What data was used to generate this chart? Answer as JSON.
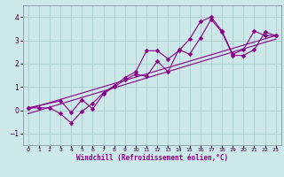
{
  "title": "",
  "xlabel": "Windchill (Refroidissement éolien,°C)",
  "ylabel": "",
  "bg_color": "#cce8e8",
  "grid_color": "#aacccc",
  "line_color": "#880088",
  "xlim": [
    -0.5,
    23.5
  ],
  "ylim": [
    -1.5,
    4.5
  ],
  "xticks": [
    0,
    1,
    2,
    3,
    4,
    5,
    6,
    7,
    8,
    9,
    10,
    11,
    12,
    13,
    14,
    15,
    16,
    17,
    18,
    19,
    20,
    21,
    22,
    23
  ],
  "yticks": [
    -1,
    0,
    1,
    2,
    3,
    4
  ],
  "line1_x": [
    0,
    1,
    2,
    3,
    4,
    5,
    6,
    7,
    8,
    9,
    10,
    11,
    12,
    13,
    14,
    15,
    16,
    17,
    18,
    19,
    20,
    21,
    22,
    23
  ],
  "line1_y": [
    0.1,
    0.1,
    0.1,
    -0.15,
    -0.55,
    -0.05,
    0.3,
    0.75,
    1.05,
    1.4,
    1.65,
    2.55,
    2.55,
    2.2,
    2.55,
    3.05,
    3.8,
    4.0,
    3.4,
    2.4,
    2.6,
    3.4,
    3.2,
    3.2
  ],
  "line2_x": [
    0,
    3,
    4,
    5,
    6,
    7,
    8,
    9,
    10,
    11,
    12,
    13,
    14,
    15,
    16,
    17,
    18,
    19,
    20,
    21,
    22,
    23
  ],
  "line2_y": [
    0.1,
    0.4,
    -0.1,
    0.45,
    0.05,
    0.7,
    1.0,
    1.3,
    1.55,
    1.45,
    2.1,
    1.65,
    2.6,
    2.4,
    3.1,
    3.9,
    3.35,
    2.35,
    2.35,
    2.6,
    3.35,
    3.2
  ],
  "line3_x": [
    0,
    23
  ],
  "line3_y": [
    0.05,
    3.2
  ],
  "line4_x": [
    0,
    23
  ],
  "line4_y": [
    -0.15,
    3.05
  ]
}
